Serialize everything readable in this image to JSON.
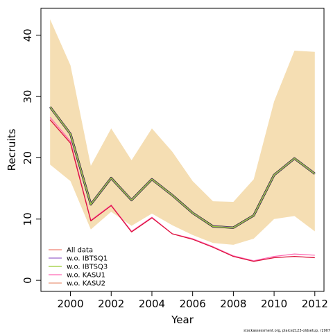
{
  "chart_data": {
    "type": "line",
    "xlabel": "Year",
    "ylabel": "Recruits",
    "xlim": [
      1998.55,
      2012.45
    ],
    "ylim": [
      -1.8,
      44.4
    ],
    "xticks": [
      2000,
      2002,
      2004,
      2006,
      2008,
      2010,
      2012
    ],
    "yticks": [
      0,
      10,
      20,
      30,
      40
    ],
    "x": [
      1999,
      2000,
      2001,
      2002,
      2003,
      2004,
      2005,
      2006,
      2007,
      2008,
      2009,
      2010,
      2011,
      2012
    ],
    "band": {
      "color": "#F5DEB3",
      "lower": [
        18.9,
        16.2,
        8.3,
        11.2,
        8.9,
        10.9,
        9.0,
        7.4,
        6.1,
        5.8,
        6.8,
        10.0,
        10.5,
        8.0
      ],
      "upper": [
        42.6,
        35.1,
        18.7,
        24.8,
        19.6,
        24.8,
        21.0,
        16.2,
        12.9,
        12.8,
        16.5,
        29.2,
        37.5,
        37.3
      ]
    },
    "series": [
      {
        "name": "All data",
        "color": "#000000",
        "values": [
          28.3,
          23.9,
          12.4,
          16.7,
          13.1,
          16.5,
          13.9,
          11.0,
          8.8,
          8.6,
          10.6,
          17.2,
          19.9,
          17.4
        ]
      },
      {
        "name": "w.o. IBTSQ1",
        "color": "#9966CC",
        "values": [
          28.3,
          23.9,
          12.4,
          16.7,
          13.1,
          16.5,
          13.9,
          11.0,
          8.8,
          8.6,
          10.6,
          17.2,
          19.9,
          17.4
        ]
      },
      {
        "name": "w.o. IBTSQ3",
        "color": "#99CC33",
        "values": [
          28.3,
          23.9,
          12.4,
          16.7,
          13.1,
          16.5,
          13.9,
          11.0,
          8.8,
          8.6,
          10.6,
          17.2,
          19.9,
          17.4
        ]
      },
      {
        "name": "w.o. KASU1",
        "color": "#FF69B4",
        "values": [
          26.6,
          22.7,
          9.8,
          12.3,
          8.0,
          10.3,
          7.6,
          6.8,
          5.5,
          4.0,
          3.2,
          3.9,
          4.3,
          4.1
        ]
      },
      {
        "name": "w.o. KASU2",
        "color": "#DC143C",
        "values": [
          26.2,
          22.4,
          9.7,
          12.2,
          7.9,
          10.2,
          7.6,
          6.7,
          5.4,
          3.9,
          3.1,
          3.7,
          3.9,
          3.7
        ]
      }
    ],
    "legend": {
      "position": "bottom-left",
      "items": [
        {
          "label": "All data",
          "color": "#F08070"
        },
        {
          "label": "w.o. IBTSQ1",
          "color": "#9966CC"
        },
        {
          "label": "w.o. IBTSQ3",
          "color": "#99CC33"
        },
        {
          "label": "w.o. KASU1",
          "color": "#FF69B4"
        },
        {
          "label": "w.o. KASU2",
          "color": "#E9967A"
        }
      ]
    },
    "footer": "stockassessment.org, plaice2123-oldsetup, r1907"
  }
}
